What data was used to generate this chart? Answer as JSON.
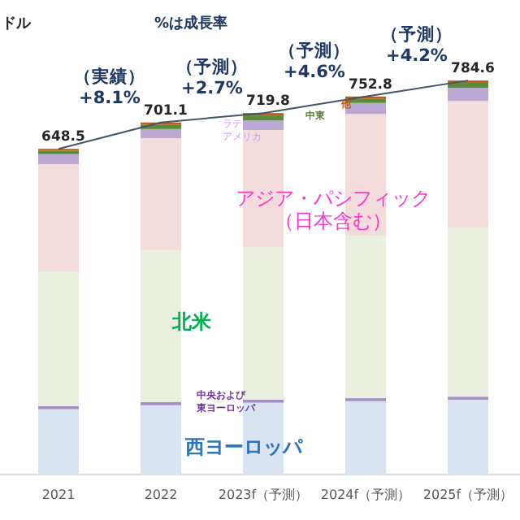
{
  "chart_data": {
    "type": "bar",
    "stacked": true,
    "title": "%は成長率",
    "categories": [
      "2021",
      "2022",
      "2023f（予測）",
      "2024f（予測）",
      "2025f（予測）"
    ],
    "series": [
      {
        "name": "西ヨーロッパ",
        "color": "#dae3f0",
        "values": [
          130,
          138,
          143,
          146,
          149
        ]
      },
      {
        "name": "中央および東ヨーロッパ",
        "color": "#a48fc5",
        "values": [
          6,
          6,
          6,
          6,
          6
        ]
      },
      {
        "name": "北米",
        "color": "#ebefe0",
        "values": [
          268,
          303,
          304,
          324,
          337
        ]
      },
      {
        "name": "アジア・パシフィック（日本含む）",
        "color": "#f4dcdc",
        "values": [
          214,
          223,
          233,
          242,
          252
        ]
      },
      {
        "name": "ラテンアメリカ",
        "color": "#b9a9d3",
        "values": [
          20,
          18,
          19,
          22,
          26
        ]
      },
      {
        "name": "中東",
        "color": "#5a8a3a",
        "values": [
          7,
          9,
          10,
          8,
          10
        ]
      },
      {
        "name": "他",
        "color": "#c55a11",
        "values": [
          3.5,
          4.1,
          4.8,
          4.8,
          4.6
        ]
      },
      {
        "type": "line",
        "color": "#44546a",
        "values": [
          648.5,
          701.1,
          719.8,
          752.8,
          784.6
        ],
        "value_labels": [
          "648.5",
          "701.1",
          "719.8",
          "752.8",
          "784.6"
        ]
      }
    ],
    "annotations": [
      "ドル",
      {
        "text": "（実績）\n+8.1%",
        "x": "2022",
        "y": 701.1
      },
      {
        "text": "（予測）\n+2.7%",
        "x": "2023f（予測）",
        "y": 719.8
      },
      {
        "text": "（予測）\n+4.6%",
        "x": "2024f（予測）",
        "y": 752.8
      },
      {
        "text": "（予測）\n+4.2%",
        "x": "2025f（予測）",
        "y": 784.6
      }
    ],
    "legend": false
  }
}
